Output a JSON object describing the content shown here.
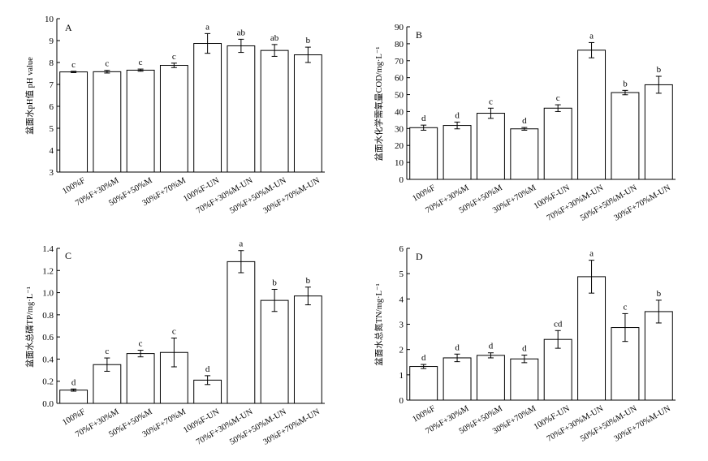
{
  "chart_data": [
    {
      "type": "bar",
      "panel": "A",
      "ylabel": "盆面水pH值 pH value",
      "ylim": [
        3,
        10
      ],
      "yticks": [
        3,
        4,
        5,
        6,
        7,
        8,
        9,
        10
      ],
      "categories": [
        "100%F",
        "70%F+30%M",
        "50%F+50%M",
        "30%F+70%M",
        "100%F-UN",
        "70%F+30%M-UN",
        "50%F+50%M-UN",
        "30%F+70%M-UN"
      ],
      "values": [
        7.57,
        7.58,
        7.65,
        7.87,
        8.87,
        8.76,
        8.55,
        8.35
      ],
      "errors": [
        0.03,
        0.06,
        0.05,
        0.1,
        0.45,
        0.3,
        0.27,
        0.35
      ],
      "significance": [
        "c",
        "c",
        "c",
        "c",
        "a",
        "ab",
        "ab",
        "b"
      ]
    },
    {
      "type": "bar",
      "panel": "B",
      "ylabel": "盆面水化学需氧量COD/mg·L⁻¹",
      "ylim": [
        0,
        90
      ],
      "yticks": [
        0,
        10,
        20,
        30,
        40,
        50,
        60,
        70,
        80,
        90
      ],
      "categories": [
        "100%F",
        "70%F+30%M",
        "50%F+50%M",
        "30%F+70%M",
        "100%F-UN",
        "70%F+30%M-UN",
        "50%F+50%M-UN",
        "30%F+70%M-UN"
      ],
      "values": [
        30.5,
        31.8,
        39,
        29.8,
        42,
        76.2,
        51.2,
        55.8
      ],
      "errors": [
        1.5,
        2.0,
        3.0,
        0.8,
        2.0,
        4.5,
        1.3,
        5.0
      ],
      "significance": [
        "d",
        "d",
        "c",
        "d",
        "c",
        "a",
        "b",
        "b"
      ]
    },
    {
      "type": "bar",
      "panel": "C",
      "ylabel": "盆面水总磷TP/mg·L⁻¹",
      "ylim": [
        0,
        1.4
      ],
      "yticks": [
        0,
        0.2,
        0.4,
        0.6,
        0.8,
        1.0,
        1.2,
        1.4
      ],
      "categories": [
        "100%F",
        "70%F+30%M",
        "50%F+50%M",
        "30%F+70%M",
        "100%F-UN",
        "70%F+30%M-UN",
        "50%F+50%M-UN",
        "30%F+70%M-UN"
      ],
      "values": [
        0.12,
        0.35,
        0.45,
        0.46,
        0.21,
        1.28,
        0.93,
        0.97
      ],
      "errors": [
        0.01,
        0.06,
        0.03,
        0.13,
        0.04,
        0.1,
        0.1,
        0.08
      ],
      "significance": [
        "d",
        "c",
        "c",
        "c",
        "d",
        "a",
        "b",
        "b"
      ]
    },
    {
      "type": "bar",
      "panel": "D",
      "ylabel": "盆面水总氮TN/mg·L⁻¹",
      "ylim": [
        0,
        6
      ],
      "yticks": [
        0,
        1,
        2,
        3,
        4,
        5,
        6
      ],
      "categories": [
        "100%F",
        "70%F+30%M",
        "50%F+50%M",
        "30%F+70%M",
        "100%F-UN",
        "70%F+30%M-UN",
        "50%F+50%M-UN",
        "30%F+70%M-UN"
      ],
      "values": [
        1.33,
        1.67,
        1.77,
        1.63,
        2.4,
        4.88,
        2.87,
        3.5
      ],
      "errors": [
        0.08,
        0.15,
        0.1,
        0.15,
        0.35,
        0.65,
        0.55,
        0.45
      ],
      "significance": [
        "d",
        "d",
        "d",
        "d",
        "cd",
        "a",
        "c",
        "b"
      ]
    }
  ]
}
